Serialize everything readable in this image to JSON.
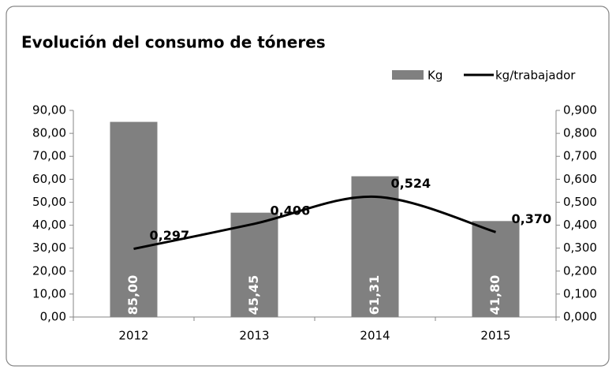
{
  "chart_data": {
    "type": "bar+line",
    "title": "Evolución del consumo de tóneres",
    "categories": [
      "2012",
      "2013",
      "2014",
      "2015"
    ],
    "series": [
      {
        "name": "Kg",
        "type": "bar",
        "color": "#808080",
        "axis": "y",
        "values": [
          85.0,
          45.45,
          61.31,
          41.8
        ],
        "value_labels": [
          "85,00",
          "45,45",
          "61,31",
          "41,80"
        ]
      },
      {
        "name": "kg/trabajador",
        "type": "line",
        "color": "#000000",
        "axis": "y2",
        "values": [
          0.297,
          0.406,
          0.524,
          0.37
        ],
        "value_labels": [
          "0,297",
          "0,406",
          "0,524",
          "0,370"
        ]
      }
    ],
    "ylim": [
      0,
      90
    ],
    "yticks": [
      {
        "value": 0,
        "label": "0,00"
      },
      {
        "value": 10,
        "label": "10,00"
      },
      {
        "value": 20,
        "label": "20,00"
      },
      {
        "value": 30,
        "label": "30,00"
      },
      {
        "value": 40,
        "label": "40,00"
      },
      {
        "value": 50,
        "label": "50,00"
      },
      {
        "value": 60,
        "label": "60,00"
      },
      {
        "value": 70,
        "label": "70,00"
      },
      {
        "value": 80,
        "label": "80,00"
      },
      {
        "value": 90,
        "label": "90,00"
      }
    ],
    "y2lim": [
      0,
      0.9
    ],
    "y2ticks": [
      {
        "value": 0,
        "label": "0,000"
      },
      {
        "value": 0.1,
        "label": "0,100"
      },
      {
        "value": 0.2,
        "label": "0,200"
      },
      {
        "value": 0.3,
        "label": "0,300"
      },
      {
        "value": 0.4,
        "label": "0,400"
      },
      {
        "value": 0.5,
        "label": "0,500"
      },
      {
        "value": 0.6,
        "label": "0,600"
      },
      {
        "value": 0.7,
        "label": "0,700"
      },
      {
        "value": 0.8,
        "label": "0,800"
      },
      {
        "value": 0.9,
        "label": "0,900"
      }
    ],
    "grid": false,
    "legend": "top-right"
  }
}
